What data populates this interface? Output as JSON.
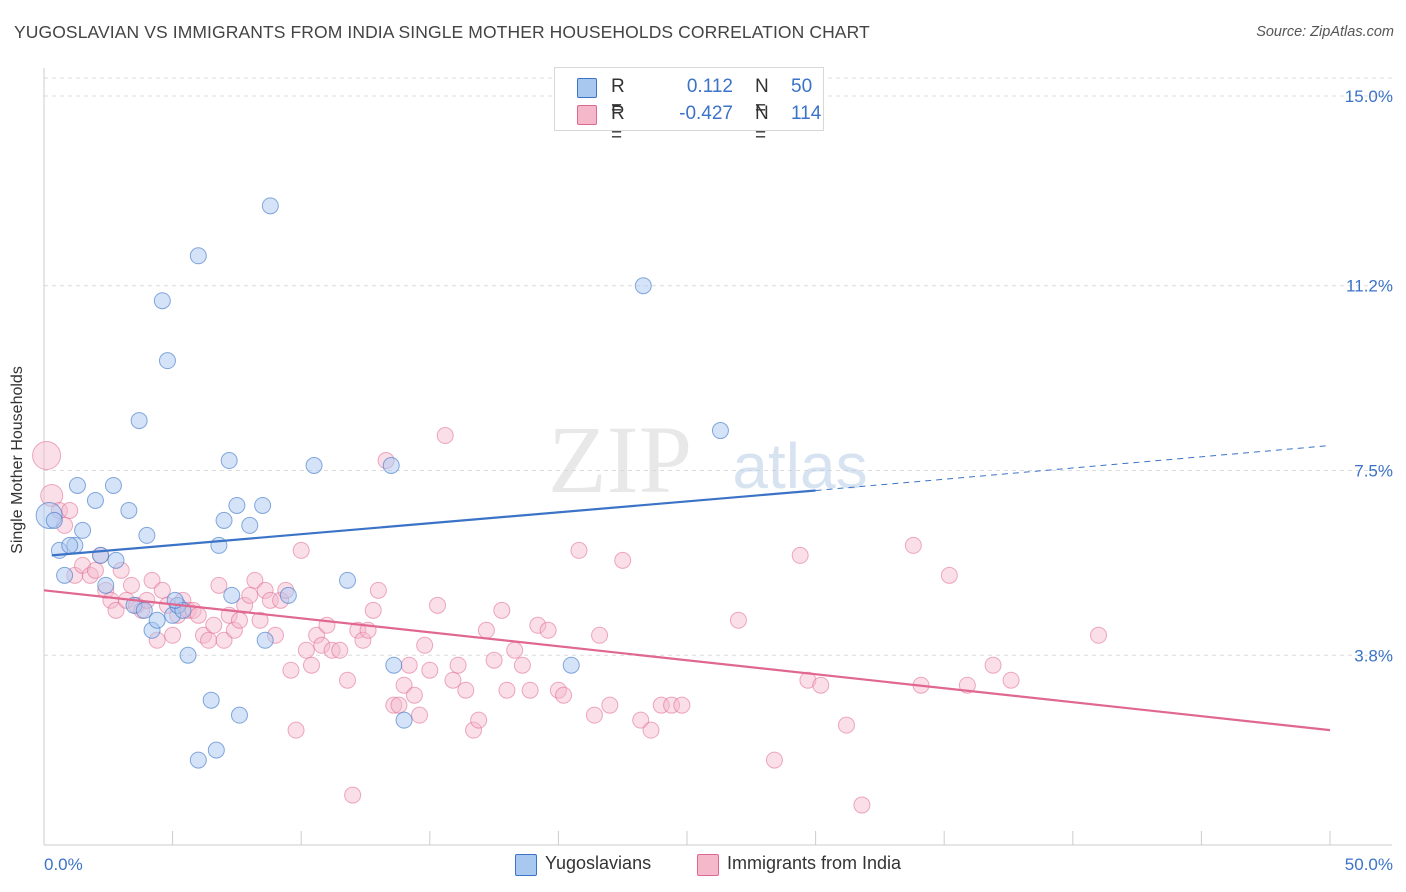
{
  "title": "YUGOSLAVIAN VS IMMIGRANTS FROM INDIA SINGLE MOTHER HOUSEHOLDS CORRELATION CHART",
  "source": "Source: ZipAtlas.com",
  "watermark": {
    "zip": "ZIP",
    "atlas": "atlas"
  },
  "colors": {
    "blue": "#3b73c7",
    "blue_fill": "#a9c8ef",
    "pink": "#e0678f",
    "pink_fill": "#f5b8cb",
    "axis_label": "#3b73c7"
  },
  "legend_top": {
    "rows": [
      {
        "r_label": "R =",
        "r_value": "0.112",
        "n_label": "N =",
        "n_value": "50"
      },
      {
        "r_label": "R =",
        "r_value": "-0.427",
        "n_label": "N =",
        "n_value": "114"
      }
    ]
  },
  "legend_bottom": [
    "Yugoslavians",
    "Immigrants from India"
  ],
  "chart_data": {
    "type": "scatter",
    "title": "YUGOSLAVIAN VS IMMIGRANTS FROM INDIA SINGLE MOTHER HOUSEHOLDS CORRELATION CHART",
    "xlabel": "",
    "ylabel": "Single Mother Households",
    "xlim": [
      0,
      50
    ],
    "ylim": [
      0,
      15.4
    ],
    "x_tick_labels": [
      "0.0%",
      "50.0%"
    ],
    "y_ticks": [
      3.8,
      7.5,
      11.2,
      15.0
    ],
    "y_tick_labels": [
      "3.8%",
      "7.5%",
      "11.2%",
      "15.0%"
    ],
    "grid": true,
    "legend_position": "top-center",
    "series": [
      {
        "name": "Yugoslavians",
        "color": "#3b73c7",
        "trend": {
          "x": [
            0.3,
            30.0
          ],
          "y": [
            5.8,
            7.1
          ],
          "dashed_extension": {
            "x": [
              30.0,
              50.0
            ],
            "y": [
              7.1,
              8.0
            ]
          }
        },
        "points": [
          [
            0.2,
            6.6
          ],
          [
            0.6,
            5.9
          ],
          [
            0.8,
            5.4
          ],
          [
            1.2,
            6.0
          ],
          [
            1.5,
            6.3
          ],
          [
            1.3,
            7.2
          ],
          [
            2.0,
            6.9
          ],
          [
            2.2,
            5.8
          ],
          [
            2.7,
            7.2
          ],
          [
            2.4,
            5.2
          ],
          [
            3.3,
            6.7
          ],
          [
            3.5,
            4.8
          ],
          [
            3.7,
            8.5
          ],
          [
            3.9,
            4.7
          ],
          [
            4.0,
            6.2
          ],
          [
            4.2,
            4.3
          ],
          [
            4.4,
            4.5
          ],
          [
            4.6,
            10.9
          ],
          [
            4.8,
            9.7
          ],
          [
            5.0,
            4.6
          ],
          [
            5.2,
            4.8
          ],
          [
            5.4,
            4.7
          ],
          [
            5.6,
            3.8
          ],
          [
            6.0,
            11.8
          ],
          [
            6.0,
            1.7
          ],
          [
            6.5,
            2.9
          ],
          [
            6.7,
            1.9
          ],
          [
            6.8,
            6.0
          ],
          [
            7.0,
            6.5
          ],
          [
            7.2,
            7.7
          ],
          [
            7.5,
            6.8
          ],
          [
            7.6,
            2.6
          ],
          [
            8.0,
            6.4
          ],
          [
            8.5,
            6.8
          ],
          [
            8.6,
            4.1
          ],
          [
            8.8,
            12.8
          ],
          [
            9.5,
            5.0
          ],
          [
            10.5,
            7.6
          ],
          [
            11.8,
            5.3
          ],
          [
            13.5,
            7.6
          ],
          [
            13.6,
            3.6
          ],
          [
            14.0,
            2.5
          ],
          [
            20.5,
            3.6
          ],
          [
            23.3,
            11.2
          ],
          [
            26.3,
            8.3
          ],
          [
            0.4,
            6.5
          ],
          [
            2.8,
            5.7
          ],
          [
            1.0,
            6.0
          ],
          [
            7.3,
            5.0
          ],
          [
            5.1,
            4.9
          ]
        ]
      },
      {
        "name": "Immigrants from India",
        "color": "#e0678f",
        "trend": {
          "x": [
            0.0,
            50.0
          ],
          "y": [
            5.1,
            2.3
          ]
        },
        "points": [
          [
            0.1,
            7.8
          ],
          [
            0.3,
            7.0
          ],
          [
            0.6,
            6.7
          ],
          [
            0.8,
            6.4
          ],
          [
            1.0,
            6.7
          ],
          [
            1.2,
            5.4
          ],
          [
            1.5,
            5.6
          ],
          [
            1.8,
            5.4
          ],
          [
            2.0,
            5.5
          ],
          [
            2.2,
            5.8
          ],
          [
            2.4,
            5.1
          ],
          [
            2.6,
            4.9
          ],
          [
            2.8,
            4.7
          ],
          [
            3.0,
            5.5
          ],
          [
            3.2,
            4.9
          ],
          [
            3.4,
            5.2
          ],
          [
            3.6,
            4.8
          ],
          [
            3.8,
            4.7
          ],
          [
            4.0,
            4.9
          ],
          [
            4.2,
            5.3
          ],
          [
            4.4,
            4.1
          ],
          [
            4.6,
            5.1
          ],
          [
            4.8,
            4.8
          ],
          [
            5.0,
            4.2
          ],
          [
            5.2,
            4.6
          ],
          [
            5.4,
            4.9
          ],
          [
            5.6,
            4.7
          ],
          [
            5.8,
            4.7
          ],
          [
            6.0,
            4.6
          ],
          [
            6.2,
            4.2
          ],
          [
            6.4,
            4.1
          ],
          [
            6.6,
            4.4
          ],
          [
            6.8,
            5.2
          ],
          [
            7.0,
            4.1
          ],
          [
            7.2,
            4.6
          ],
          [
            7.4,
            4.3
          ],
          [
            7.6,
            4.5
          ],
          [
            7.8,
            4.8
          ],
          [
            8.0,
            5.0
          ],
          [
            8.2,
            5.3
          ],
          [
            8.4,
            4.5
          ],
          [
            8.6,
            5.1
          ],
          [
            8.8,
            4.9
          ],
          [
            9.0,
            4.2
          ],
          [
            9.2,
            4.9
          ],
          [
            9.4,
            5.1
          ],
          [
            9.6,
            3.5
          ],
          [
            9.8,
            2.3
          ],
          [
            10.0,
            5.9
          ],
          [
            10.2,
            3.9
          ],
          [
            10.4,
            3.6
          ],
          [
            10.6,
            4.2
          ],
          [
            10.8,
            4.0
          ],
          [
            11.0,
            4.4
          ],
          [
            11.2,
            3.9
          ],
          [
            11.5,
            3.9
          ],
          [
            11.8,
            3.3
          ],
          [
            12.0,
            1.0
          ],
          [
            12.2,
            4.3
          ],
          [
            12.4,
            4.1
          ],
          [
            12.6,
            4.3
          ],
          [
            12.8,
            4.7
          ],
          [
            13.0,
            5.1
          ],
          [
            13.3,
            7.7
          ],
          [
            13.6,
            2.8
          ],
          [
            13.8,
            2.8
          ],
          [
            14.0,
            3.2
          ],
          [
            14.2,
            3.6
          ],
          [
            14.4,
            3.0
          ],
          [
            14.6,
            2.6
          ],
          [
            14.8,
            4.0
          ],
          [
            15.0,
            3.5
          ],
          [
            15.3,
            4.8
          ],
          [
            15.6,
            8.2
          ],
          [
            15.9,
            3.3
          ],
          [
            16.1,
            3.6
          ],
          [
            16.4,
            3.1
          ],
          [
            16.7,
            2.3
          ],
          [
            16.9,
            2.5
          ],
          [
            17.2,
            4.3
          ],
          [
            17.5,
            3.7
          ],
          [
            17.8,
            4.7
          ],
          [
            18.0,
            3.1
          ],
          [
            18.3,
            3.9
          ],
          [
            18.6,
            3.6
          ],
          [
            18.9,
            3.1
          ],
          [
            19.2,
            4.4
          ],
          [
            19.6,
            4.3
          ],
          [
            20.0,
            3.1
          ],
          [
            20.2,
            3.0
          ],
          [
            20.8,
            5.9
          ],
          [
            21.4,
            2.6
          ],
          [
            21.6,
            4.2
          ],
          [
            22.0,
            2.8
          ],
          [
            22.5,
            5.7
          ],
          [
            23.2,
            2.5
          ],
          [
            23.6,
            2.3
          ],
          [
            24.0,
            2.8
          ],
          [
            24.4,
            2.8
          ],
          [
            24.8,
            2.8
          ],
          [
            27.0,
            4.5
          ],
          [
            28.4,
            1.7
          ],
          [
            29.4,
            5.8
          ],
          [
            29.7,
            3.3
          ],
          [
            30.2,
            3.2
          ],
          [
            31.2,
            2.4
          ],
          [
            31.8,
            0.8
          ],
          [
            33.8,
            6.0
          ],
          [
            34.1,
            3.2
          ],
          [
            35.2,
            5.4
          ],
          [
            35.9,
            3.2
          ],
          [
            36.9,
            3.6
          ],
          [
            37.6,
            3.3
          ],
          [
            41.0,
            4.2
          ]
        ]
      }
    ]
  }
}
